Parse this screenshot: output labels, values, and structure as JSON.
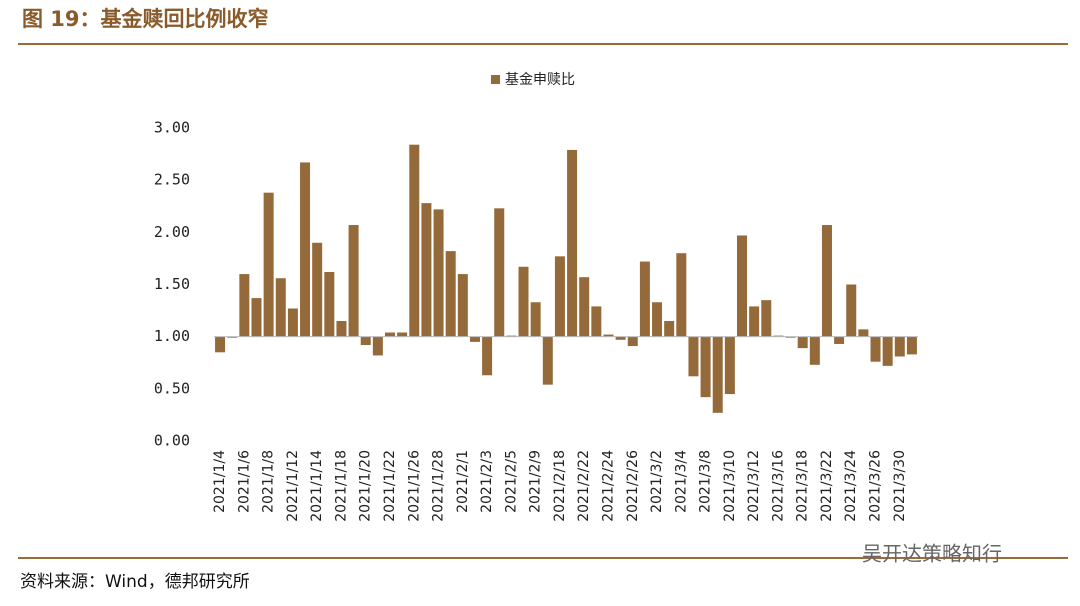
{
  "header": {
    "title": "图 19：基金赎回比例收窄"
  },
  "chart_data": {
    "type": "bar",
    "legend": "基金申赎比",
    "color": "#956a3a",
    "baseline": 1,
    "categories": [
      "2021/1/4",
      null,
      "2021/1/6",
      null,
      "2021/1/8",
      null,
      "2021/1/12",
      null,
      "2021/1/14",
      null,
      "2021/1/18",
      null,
      "2021/1/20",
      null,
      "2021/1/22",
      null,
      "2021/1/26",
      null,
      "2021/1/28",
      null,
      "2021/2/1",
      null,
      "2021/2/3",
      null,
      "2021/2/5",
      null,
      "2021/2/9",
      null,
      "2021/2/18",
      null,
      "2021/2/22",
      null,
      "2021/2/24",
      null,
      "2021/2/26",
      null,
      "2021/3/2",
      null,
      "2021/3/4",
      null,
      "2021/3/8",
      null,
      "2021/3/10",
      null,
      "2021/3/12",
      null,
      "2021/3/16",
      null,
      "2021/3/18",
      null,
      "2021/3/22",
      null,
      "2021/3/24",
      null,
      "2021/3/26",
      null,
      "2021/3/30",
      null
    ],
    "values": [
      0.85,
      0.99,
      1.6,
      1.37,
      2.38,
      1.56,
      1.27,
      2.67,
      1.9,
      1.62,
      1.15,
      2.07,
      0.92,
      0.82,
      1.04,
      1.04,
      2.84,
      2.28,
      2.22,
      1.82,
      1.6,
      0.95,
      0.63,
      2.23,
      1.01,
      1.67,
      1.33,
      0.54,
      1.77,
      2.79,
      1.57,
      1.29,
      1.02,
      0.97,
      0.91,
      1.72,
      1.33,
      1.15,
      1.8,
      0.62,
      0.42,
      0.27,
      0.45,
      1.97,
      1.29,
      1.35,
      1.01,
      0.99,
      0.89,
      0.73,
      2.07,
      0.93,
      1.5,
      1.07,
      0.76,
      0.72,
      0.81,
      0.83
    ],
    "ylim": [
      0,
      3
    ],
    "yticks": [
      {
        "value": 0,
        "label": "0.00"
      },
      {
        "value": 0.5,
        "label": "0.50"
      },
      {
        "value": 1,
        "label": "1.00"
      },
      {
        "value": 1.5,
        "label": "1.50"
      },
      {
        "value": 2,
        "label": "2.00"
      },
      {
        "value": 2.5,
        "label": "2.50"
      },
      {
        "value": 3,
        "label": "3.00"
      }
    ]
  },
  "footer": {
    "source": "资料来源：Wind，德邦研究所",
    "watermark": "吴开达策略知行"
  }
}
